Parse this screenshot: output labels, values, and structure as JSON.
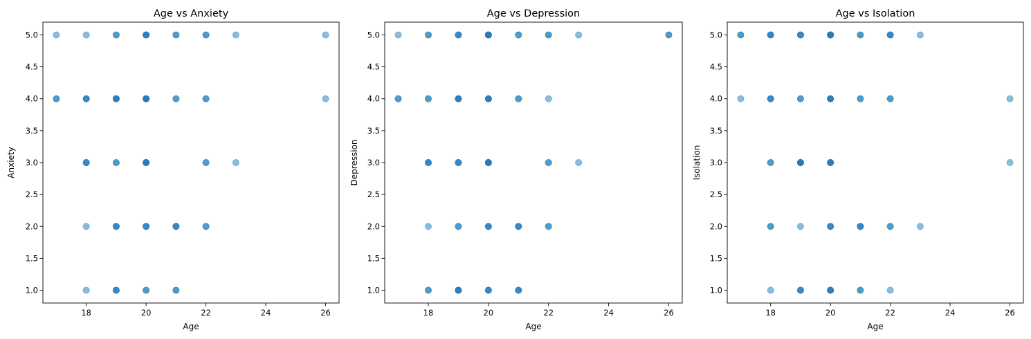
{
  "chart_data": [
    {
      "type": "scatter",
      "title": "Age vs Anxiety",
      "xlabel": "Age",
      "ylabel": "Anxiety",
      "xlim": [
        16.55,
        26.45
      ],
      "ylim": [
        0.8,
        5.2
      ],
      "xticks": [
        18,
        20,
        22,
        24,
        26
      ],
      "yticks": [
        1.0,
        1.5,
        2.0,
        2.5,
        3.0,
        3.5,
        4.0,
        4.5,
        5.0
      ],
      "grid": false,
      "color": "#1f77b4",
      "points": [
        [
          17,
          5,
          1
        ],
        [
          18,
          5,
          1
        ],
        [
          19,
          5,
          2
        ],
        [
          20,
          5,
          4
        ],
        [
          21,
          5,
          2
        ],
        [
          22,
          5,
          2
        ],
        [
          23,
          5,
          1
        ],
        [
          26,
          5,
          1
        ],
        [
          17,
          4,
          2
        ],
        [
          18,
          4,
          3
        ],
        [
          19,
          4,
          4
        ],
        [
          20,
          4,
          5
        ],
        [
          21,
          4,
          2
        ],
        [
          22,
          4,
          2
        ],
        [
          26,
          4,
          1
        ],
        [
          18,
          3,
          3
        ],
        [
          19,
          3,
          2
        ],
        [
          20,
          3,
          5
        ],
        [
          22,
          3,
          2
        ],
        [
          23,
          3,
          1
        ],
        [
          18,
          2,
          1
        ],
        [
          19,
          2,
          3
        ],
        [
          20,
          2,
          3
        ],
        [
          21,
          2,
          3
        ],
        [
          22,
          2,
          2
        ],
        [
          18,
          1,
          1
        ],
        [
          19,
          1,
          3
        ],
        [
          20,
          1,
          2
        ],
        [
          21,
          1,
          2
        ]
      ]
    },
    {
      "type": "scatter",
      "title": "Age vs Depression",
      "xlabel": "Age",
      "ylabel": "Depression",
      "xlim": [
        16.55,
        26.45
      ],
      "ylim": [
        0.8,
        5.2
      ],
      "xticks": [
        18,
        20,
        22,
        24,
        26
      ],
      "yticks": [
        1.0,
        1.5,
        2.0,
        2.5,
        3.0,
        3.5,
        4.0,
        4.5,
        5.0
      ],
      "grid": false,
      "color": "#1f77b4",
      "points": [
        [
          17,
          5,
          1
        ],
        [
          18,
          5,
          2
        ],
        [
          19,
          5,
          3
        ],
        [
          20,
          5,
          5
        ],
        [
          21,
          5,
          2
        ],
        [
          22,
          5,
          2
        ],
        [
          23,
          5,
          1
        ],
        [
          26,
          5,
          2
        ],
        [
          17,
          4,
          2
        ],
        [
          18,
          4,
          2
        ],
        [
          19,
          4,
          4
        ],
        [
          20,
          4,
          4
        ],
        [
          21,
          4,
          2
        ],
        [
          22,
          4,
          1
        ],
        [
          18,
          3,
          3
        ],
        [
          19,
          3,
          3
        ],
        [
          20,
          3,
          5
        ],
        [
          22,
          3,
          2
        ],
        [
          23,
          3,
          1
        ],
        [
          18,
          2,
          1
        ],
        [
          19,
          2,
          2
        ],
        [
          20,
          2,
          3
        ],
        [
          21,
          2,
          3
        ],
        [
          22,
          2,
          2
        ],
        [
          18,
          1,
          2
        ],
        [
          19,
          1,
          4
        ],
        [
          20,
          1,
          3
        ],
        [
          21,
          1,
          3
        ]
      ]
    },
    {
      "type": "scatter",
      "title": "Age vs Isolation",
      "xlabel": "Age",
      "ylabel": "Isolation",
      "xlim": [
        16.55,
        26.45
      ],
      "ylim": [
        0.8,
        5.2
      ],
      "xticks": [
        18,
        20,
        22,
        24,
        26
      ],
      "yticks": [
        1.0,
        1.5,
        2.0,
        2.5,
        3.0,
        3.5,
        4.0,
        4.5,
        5.0
      ],
      "grid": false,
      "color": "#1f77b4",
      "points": [
        [
          17,
          5,
          2
        ],
        [
          18,
          5,
          3
        ],
        [
          19,
          5,
          3
        ],
        [
          20,
          5,
          5
        ],
        [
          21,
          5,
          2
        ],
        [
          22,
          5,
          3
        ],
        [
          23,
          5,
          1
        ],
        [
          17,
          4,
          1
        ],
        [
          18,
          4,
          3
        ],
        [
          19,
          4,
          2
        ],
        [
          20,
          4,
          4
        ],
        [
          21,
          4,
          2
        ],
        [
          22,
          4,
          2
        ],
        [
          26,
          4,
          1
        ],
        [
          18,
          3,
          2
        ],
        [
          19,
          3,
          5
        ],
        [
          20,
          3,
          4
        ],
        [
          26,
          3,
          1
        ],
        [
          18,
          2,
          2
        ],
        [
          19,
          2,
          1
        ],
        [
          20,
          2,
          3
        ],
        [
          21,
          2,
          3
        ],
        [
          22,
          2,
          2
        ],
        [
          23,
          2,
          1
        ],
        [
          18,
          1,
          1
        ],
        [
          19,
          1,
          3
        ],
        [
          20,
          1,
          4
        ],
        [
          21,
          1,
          2
        ],
        [
          22,
          1,
          1
        ]
      ]
    }
  ]
}
